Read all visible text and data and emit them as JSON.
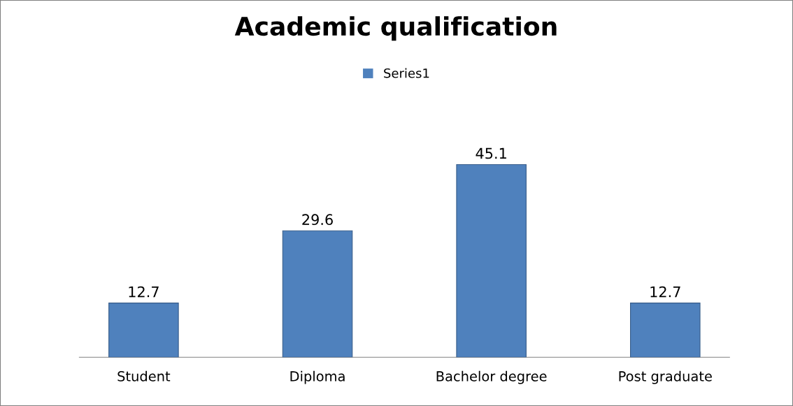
{
  "chart_data": {
    "type": "bar",
    "title": "Academic qualification",
    "categories": [
      "Student",
      "Diploma",
      "Bachelor degree",
      "Post graduate"
    ],
    "series": [
      {
        "name": "Series1",
        "color": "#4f81bd",
        "values": [
          12.7,
          29.6,
          45.1,
          12.7
        ]
      }
    ],
    "data_labels": true,
    "legend": "top",
    "grid": false,
    "tick_labels": "x"
  }
}
